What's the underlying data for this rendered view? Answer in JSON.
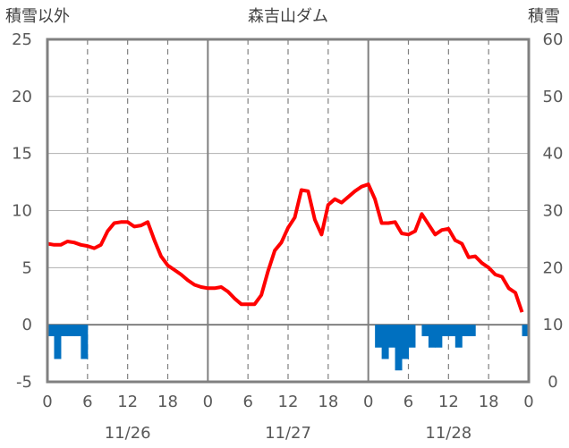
{
  "chart_data": {
    "type": "line",
    "title": "森吉山ダム",
    "left_axis_label": "積雪以外",
    "right_axis_label": "積雪",
    "left_ylim": [
      -5,
      25
    ],
    "left_yticks": [
      "25",
      "20",
      "15",
      "10",
      "5",
      "0",
      "-5"
    ],
    "right_ylim": [
      0,
      60
    ],
    "right_yticks": [
      "60",
      "50",
      "40",
      "30",
      "20",
      "10",
      "0"
    ],
    "x_range_hours": [
      0,
      72
    ],
    "x_tick_labels": [
      "0",
      "6",
      "12",
      "18",
      "0",
      "6",
      "12",
      "18",
      "0",
      "6",
      "12",
      "18",
      "0"
    ],
    "date_labels": [
      "11/26",
      "11/27",
      "11/28"
    ],
    "grid": true,
    "series": [
      {
        "color": "#ff0000",
        "axis": "left",
        "type": "line",
        "x": [
          0,
          1,
          2,
          3,
          4,
          5,
          6,
          7,
          8,
          9,
          10,
          11,
          12,
          13,
          14,
          15,
          16,
          17,
          18,
          19,
          20,
          21,
          22,
          23,
          24,
          25,
          26,
          27,
          28,
          29,
          30,
          31,
          32,
          33,
          34,
          35,
          36,
          37,
          38,
          39,
          40,
          41,
          42,
          43,
          44,
          45,
          46,
          47,
          48,
          49,
          50,
          51,
          52,
          53,
          54,
          55,
          56,
          57,
          58,
          59,
          60,
          61,
          62,
          63,
          64,
          65,
          66,
          67,
          68,
          69,
          70,
          71
        ],
        "values": [
          7.1,
          7.0,
          7.0,
          7.3,
          7.2,
          7.0,
          6.9,
          6.7,
          7.0,
          8.2,
          8.9,
          9.0,
          9.0,
          8.6,
          8.7,
          9.0,
          7.4,
          6.0,
          5.2,
          4.8,
          4.4,
          3.9,
          3.5,
          3.3,
          3.2,
          3.2,
          3.3,
          2.9,
          2.3,
          1.8,
          1.8,
          1.8,
          2.6,
          4.7,
          6.5,
          7.2,
          8.5,
          9.4,
          11.8,
          11.7,
          9.2,
          7.9,
          10.5,
          11.0,
          10.7,
          11.2,
          11.7,
          12.1,
          12.3,
          11.0,
          8.9,
          8.9,
          9.0,
          8.0,
          7.9,
          8.2,
          9.7,
          8.8,
          7.9,
          8.3,
          8.4,
          7.4,
          7.1,
          5.9,
          6.0,
          5.4,
          5.0,
          4.4,
          4.2,
          3.2,
          2.8,
          1.1
        ]
      },
      {
        "color": "#0070c0",
        "axis": "left",
        "type": "bar",
        "note_values": "precipitation bars hanging below zero",
        "x": [
          0,
          1,
          2,
          3,
          4,
          5,
          49,
          50,
          51,
          52,
          53,
          54,
          55,
          56,
          57,
          58,
          59,
          60,
          61,
          62,
          63,
          64,
          65,
          66,
          67,
          68,
          69,
          70,
          71
        ],
        "values": [
          -1,
          -3,
          -1,
          -1,
          -1,
          -3,
          -2,
          -3,
          -2,
          -4,
          -3,
          -2,
          0,
          -1,
          -2,
          -2,
          -1,
          -1,
          -2,
          -1,
          -1,
          0,
          0,
          0,
          0,
          0,
          0,
          0,
          -1
        ]
      },
      {
        "color": "#7030a0",
        "axis": "right",
        "type": "line",
        "x": [
          0,
          72
        ],
        "values": [
          0,
          0
        ]
      }
    ]
  }
}
